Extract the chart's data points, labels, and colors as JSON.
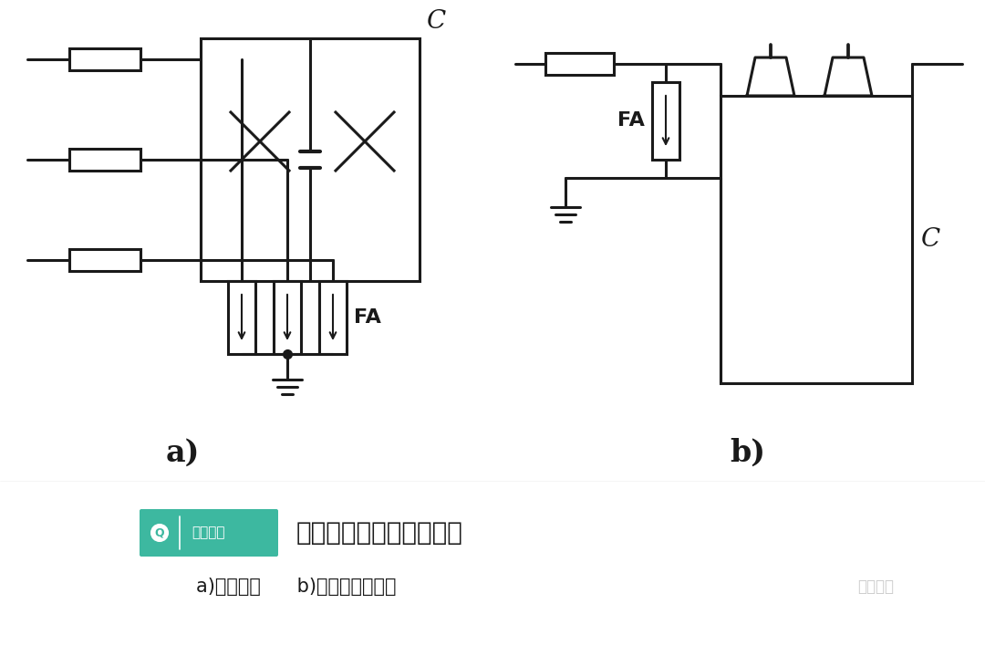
{
  "bg_color": "#ffffff",
  "line_color": "#1a1a1a",
  "line_width": 2.2,
  "label_a": "a)",
  "label_b": "b)",
  "label_FA": "FA",
  "label_C": "C",
  "brand_color": "#3db8a0",
  "brand_text": "电工知库",
  "title_text": "线路移相电容器保护接线",
  "subtitle_text": "a)接线方法      b)避雷器安装方法",
  "watermark_text": "电工知库"
}
